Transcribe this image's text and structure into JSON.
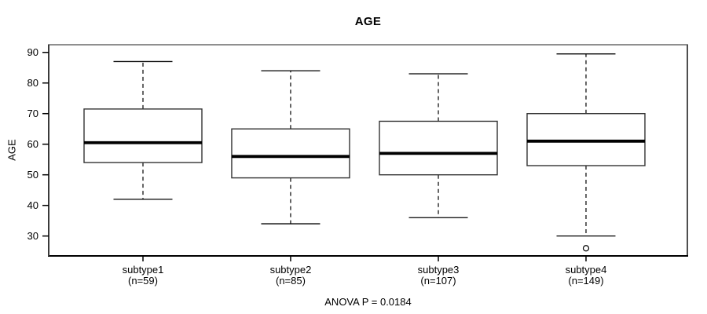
{
  "chart_data": {
    "type": "boxplot",
    "title": "AGE",
    "ylabel": "AGE",
    "xlabel": "",
    "footnote": "ANOVA P = 0.0184",
    "ylim": [
      23.5,
      92.5
    ],
    "yticks": [
      30,
      40,
      50,
      60,
      70,
      80,
      90
    ],
    "grid": false,
    "legend": "none",
    "box_fill": "#ffffff",
    "line_color": "#000000",
    "groups": [
      {
        "label": "subtype1",
        "n_label": "(n=59)",
        "n": 59,
        "whisker_low": 42,
        "q1": 54,
        "median": 60.5,
        "q3": 71.5,
        "whisker_high": 87,
        "outliers": []
      },
      {
        "label": "subtype2",
        "n_label": "(n=85)",
        "n": 85,
        "whisker_low": 34,
        "q1": 49,
        "median": 56,
        "q3": 65,
        "whisker_high": 84,
        "outliers": []
      },
      {
        "label": "subtype3",
        "n_label": "(n=107)",
        "n": 107,
        "whisker_low": 36,
        "q1": 50,
        "median": 57,
        "q3": 67.5,
        "whisker_high": 83,
        "outliers": []
      },
      {
        "label": "subtype4",
        "n_label": "(n=149)",
        "n": 149,
        "whisker_low": 30,
        "q1": 53,
        "median": 61,
        "q3": 70,
        "whisker_high": 89.5,
        "outliers": [
          26
        ]
      }
    ]
  }
}
